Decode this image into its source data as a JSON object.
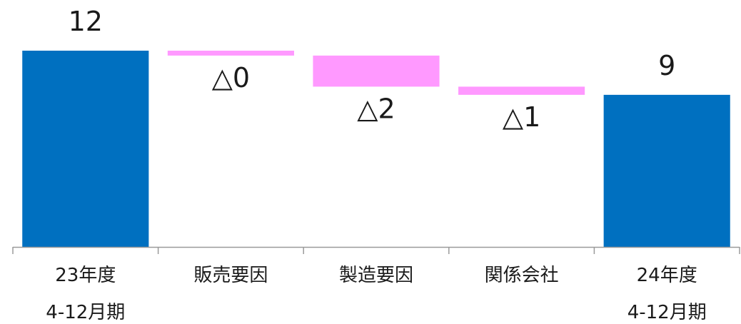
{
  "chart_data": {
    "type": "bar",
    "subtype": "waterfall",
    "categories": [
      [
        "23年度",
        "4-12月期"
      ],
      [
        "販売要因"
      ],
      [
        "製造要因"
      ],
      [
        "関係会社"
      ],
      [
        "24年度",
        "4-12月期"
      ]
    ],
    "bars": [
      {
        "kind": "total",
        "start": 0,
        "end": 12,
        "label": "12",
        "label_position": "above"
      },
      {
        "kind": "decrease",
        "start": 12,
        "end": 11.7,
        "label": "△0",
        "label_position": "below"
      },
      {
        "kind": "decrease",
        "start": 11.7,
        "end": 9.8,
        "label": "△2",
        "label_position": "below"
      },
      {
        "kind": "decrease",
        "start": 9.8,
        "end": 9.3,
        "label": "△1",
        "label_position": "below"
      },
      {
        "kind": "total",
        "start": 0,
        "end": 9.3,
        "label": "9",
        "label_position": "above"
      }
    ],
    "ylim": [
      0,
      12
    ],
    "grid": false,
    "legend": "none",
    "colors": {
      "total": "#0070C0",
      "decrease": "#FF99FF",
      "axis": "#9a9a9a",
      "text": "#1a1a1a"
    }
  }
}
